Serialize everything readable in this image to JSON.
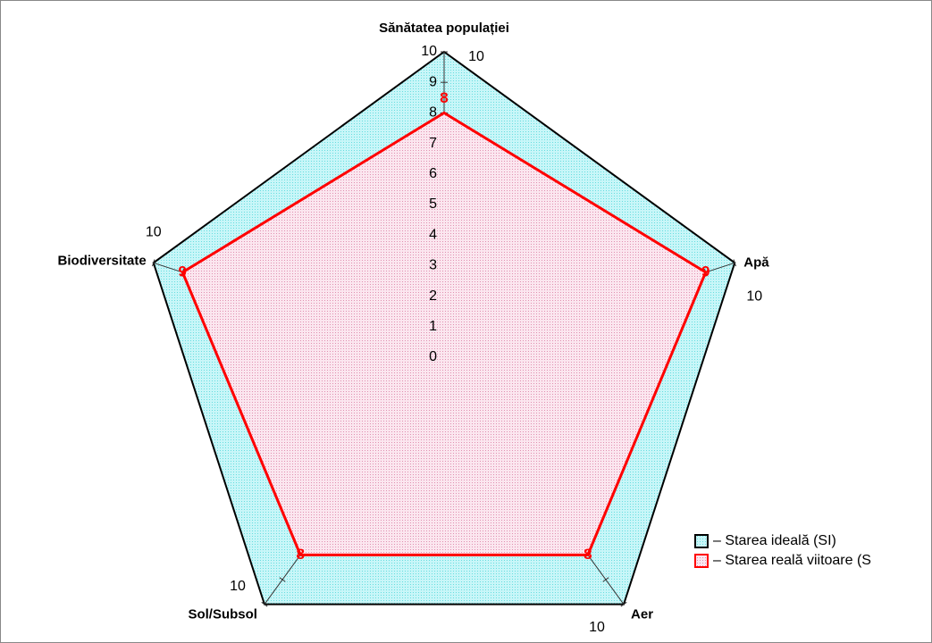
{
  "chart_data": {
    "type": "radar",
    "categories": [
      "Sănătatea populației",
      "Apă",
      "Aer",
      "Sol/Subsol",
      "Biodiversitate"
    ],
    "rlim": [
      0,
      10
    ],
    "rticks": [
      0,
      1,
      2,
      3,
      4,
      5,
      6,
      7,
      8,
      9,
      10
    ],
    "series": [
      {
        "name": "– Starea ideală (SI)",
        "color": "#99eef0",
        "edge": "#000000",
        "values": [
          10,
          10,
          10,
          10,
          10
        ]
      },
      {
        "name": "– Starea reală viitoare (S",
        "color": "#f2c4d8",
        "edge": "#ff0000",
        "values": [
          8,
          9,
          8,
          8,
          9
        ]
      }
    ]
  }
}
